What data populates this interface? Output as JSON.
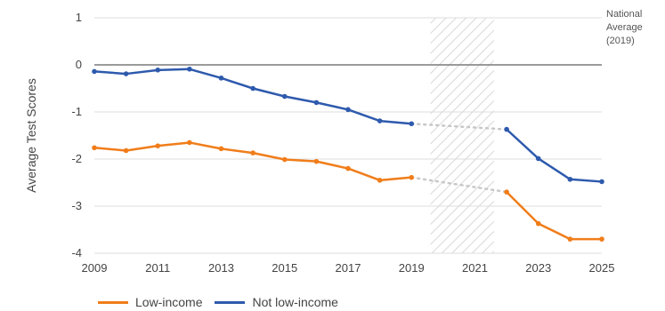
{
  "chart_data": {
    "type": "line",
    "title": "",
    "xlabel": "",
    "ylabel": "Average Test Scores",
    "xlim": [
      2009,
      2025
    ],
    "ylim": [
      -4,
      1
    ],
    "x_ticks": [
      "2009",
      "2011",
      "2013",
      "2015",
      "2017",
      "2019",
      "2021",
      "2023",
      "2025"
    ],
    "y_ticks": [
      "1",
      "0",
      "-1",
      "-2",
      "-3",
      "-4"
    ],
    "reference_line": {
      "value": 0,
      "label_lines": [
        "National",
        "Average",
        "(2019)"
      ]
    },
    "gap_region": [
      2019.6,
      2021.6
    ],
    "grid": true,
    "legend": "bottom-left",
    "series": [
      {
        "name": "Low-income",
        "color": "#f07d1a",
        "x": [
          2009,
          2010,
          2011,
          2012,
          2013,
          2014,
          2015,
          2016,
          2017,
          2018,
          2019,
          2022,
          2023,
          2024,
          2025
        ],
        "values": [
          -1.76,
          -1.82,
          -1.72,
          -1.65,
          -1.78,
          -1.87,
          -2.01,
          -2.05,
          -2.2,
          -2.45,
          -2.39,
          -2.7,
          -3.37,
          -3.7,
          -3.7
        ]
      },
      {
        "name": "Not low-income",
        "color": "#2e5aad",
        "x": [
          2009,
          2010,
          2011,
          2012,
          2013,
          2014,
          2015,
          2016,
          2017,
          2018,
          2019,
          2022,
          2023,
          2024,
          2025
        ],
        "values": [
          -0.14,
          -0.19,
          -0.11,
          -0.09,
          -0.28,
          -0.5,
          -0.67,
          -0.8,
          -0.95,
          -1.19,
          -1.25,
          -1.37,
          -1.99,
          -2.43,
          -2.48
        ]
      }
    ]
  }
}
